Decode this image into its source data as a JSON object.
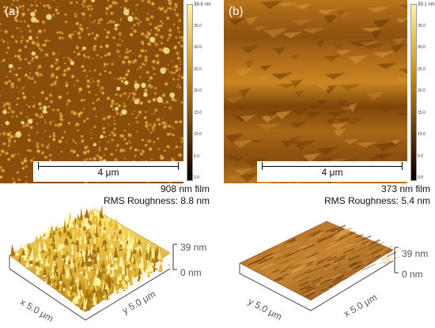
{
  "panel_a": {
    "label": "(a)",
    "scalebar": "4 μm",
    "colorbar": {
      "max_label": "38.8 nm",
      "ticks": [
        "35.0",
        "30.0",
        "25.0",
        "20.0",
        "15.0",
        "10.0",
        "5.0",
        "0.0"
      ],
      "colors": [
        "#fff4a0",
        "#c98a1a",
        "#3a1800",
        "#000000"
      ]
    },
    "caption_line1": "908 nm film",
    "caption_line2": "RMS Roughness: 8.8 nm",
    "z_top": "39 nm",
    "z_bottom": "0 nm",
    "x_axis": "x 5.0 μm",
    "y_axis": "y 5.0 μm"
  },
  "panel_b": {
    "label": "(b)",
    "scalebar": "4 μm",
    "colorbar": {
      "max_label": "39.1 nm",
      "ticks": [
        "35.0",
        "30.0",
        "25.0",
        "20.0",
        "15.0",
        "10.0",
        "5.0",
        "0.0"
      ],
      "colors": [
        "#fff4a0",
        "#c98a1a",
        "#3a1800",
        "#000000"
      ]
    },
    "caption_line1": "373 nm film",
    "caption_line2": "RMS Roughness: 5.4 nm",
    "z_top": "39 nm",
    "z_bottom": "0 nm",
    "x_axis": "x 5.0 μm",
    "y_axis": "y 5.0 μm"
  }
}
